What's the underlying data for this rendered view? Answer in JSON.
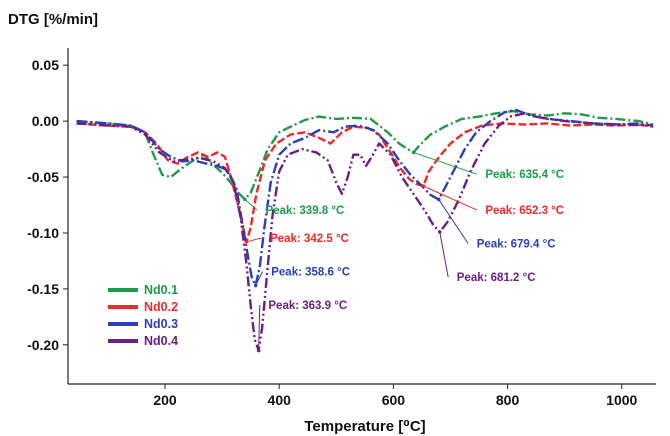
{
  "chart_data": {
    "type": "line",
    "ylabel": "DTG [%/min]",
    "xlabel": "Temperature [⁰C]",
    "xlim": [
      30,
      1060
    ],
    "ylim": [
      -0.235,
      0.06
    ],
    "xticks": [
      200,
      400,
      600,
      800,
      1000
    ],
    "xtick_labels": [
      "200",
      "400",
      "600",
      "800",
      "1000"
    ],
    "yticks": [
      0.05,
      0.0,
      -0.05,
      -0.1,
      -0.15,
      -0.2
    ],
    "ytick_labels": [
      "0.05",
      "0.00",
      "-0.05",
      "-0.10",
      "-0.15",
      "-0.20"
    ],
    "legend_position": "left-bottom",
    "series": [
      {
        "name": "Nd0.1",
        "color": "#1f9a4a",
        "dash": "10,3,2,3",
        "points": [
          [
            45,
            0
          ],
          [
            100,
            -0.002
          ],
          [
            140,
            -0.004
          ],
          [
            165,
            -0.01
          ],
          [
            180,
            -0.03
          ],
          [
            195,
            -0.048
          ],
          [
            210,
            -0.05
          ],
          [
            222,
            -0.045
          ],
          [
            235,
            -0.04
          ],
          [
            250,
            -0.035
          ],
          [
            268,
            -0.03
          ],
          [
            282,
            -0.038
          ],
          [
            300,
            -0.046
          ],
          [
            315,
            -0.055
          ],
          [
            330,
            -0.065
          ],
          [
            339.8,
            -0.07
          ],
          [
            350,
            -0.064
          ],
          [
            365,
            -0.045
          ],
          [
            380,
            -0.025
          ],
          [
            400,
            -0.01
          ],
          [
            420,
            -0.005
          ],
          [
            445,
            0.001
          ],
          [
            470,
            0.004
          ],
          [
            500,
            0.002
          ],
          [
            530,
            0.003
          ],
          [
            560,
            0.002
          ],
          [
            590,
            -0.01
          ],
          [
            610,
            -0.02
          ],
          [
            625,
            -0.025
          ],
          [
            635.4,
            -0.028
          ],
          [
            645,
            -0.022
          ],
          [
            665,
            -0.012
          ],
          [
            690,
            -0.005
          ],
          [
            720,
            0.002
          ],
          [
            750,
            0.004
          ],
          [
            780,
            0.007
          ],
          [
            810,
            0.009
          ],
          [
            840,
            0.006
          ],
          [
            870,
            0.005
          ],
          [
            900,
            0.007
          ],
          [
            930,
            0.006
          ],
          [
            960,
            0.003
          ],
          [
            990,
            0.002
          ],
          [
            1030,
            0.0
          ],
          [
            1055,
            -0.003
          ]
        ]
      },
      {
        "name": "Nd0.2",
        "color": "#ee2a2a",
        "dash": "8,3",
        "points": [
          [
            45,
            -0.002
          ],
          [
            100,
            -0.004
          ],
          [
            140,
            -0.005
          ],
          [
            165,
            -0.01
          ],
          [
            185,
            -0.02
          ],
          [
            205,
            -0.035
          ],
          [
            222,
            -0.038
          ],
          [
            240,
            -0.032
          ],
          [
            258,
            -0.028
          ],
          [
            275,
            -0.032
          ],
          [
            292,
            -0.028
          ],
          [
            305,
            -0.032
          ],
          [
            318,
            -0.055
          ],
          [
            330,
            -0.08
          ],
          [
            338,
            -0.098
          ],
          [
            342.5,
            -0.108
          ],
          [
            350,
            -0.095
          ],
          [
            360,
            -0.065
          ],
          [
            375,
            -0.035
          ],
          [
            395,
            -0.02
          ],
          [
            420,
            -0.012
          ],
          [
            445,
            -0.01
          ],
          [
            470,
            -0.015
          ],
          [
            490,
            -0.02
          ],
          [
            510,
            -0.01
          ],
          [
            530,
            -0.005
          ],
          [
            555,
            -0.006
          ],
          [
            575,
            -0.012
          ],
          [
            595,
            -0.028
          ],
          [
            612,
            -0.042
          ],
          [
            628,
            -0.052
          ],
          [
            640,
            -0.056
          ],
          [
            652.3,
            -0.058
          ],
          [
            662,
            -0.045
          ],
          [
            680,
            -0.032
          ],
          [
            700,
            -0.02
          ],
          [
            725,
            -0.01
          ],
          [
            755,
            -0.004
          ],
          [
            790,
            -0.002
          ],
          [
            830,
            -0.003
          ],
          [
            870,
            -0.002
          ],
          [
            910,
            -0.004
          ],
          [
            950,
            -0.003
          ],
          [
            990,
            -0.004
          ],
          [
            1030,
            -0.003
          ],
          [
            1055,
            -0.005
          ]
        ]
      },
      {
        "name": "Nd0.3",
        "color": "#2d3fb8",
        "dash": "11,3,2,3",
        "points": [
          [
            45,
            0
          ],
          [
            100,
            -0.002
          ],
          [
            140,
            -0.004
          ],
          [
            165,
            -0.01
          ],
          [
            190,
            -0.025
          ],
          [
            210,
            -0.032
          ],
          [
            230,
            -0.036
          ],
          [
            250,
            -0.035
          ],
          [
            272,
            -0.038
          ],
          [
            292,
            -0.04
          ],
          [
            310,
            -0.044
          ],
          [
            325,
            -0.06
          ],
          [
            335,
            -0.09
          ],
          [
            345,
            -0.12
          ],
          [
            352,
            -0.14
          ],
          [
            358.6,
            -0.147
          ],
          [
            366,
            -0.13
          ],
          [
            374,
            -0.095
          ],
          [
            385,
            -0.055
          ],
          [
            400,
            -0.03
          ],
          [
            420,
            -0.02
          ],
          [
            445,
            -0.015
          ],
          [
            470,
            -0.008
          ],
          [
            495,
            -0.01
          ],
          [
            515,
            -0.005
          ],
          [
            540,
            -0.004
          ],
          [
            565,
            -0.008
          ],
          [
            590,
            -0.02
          ],
          [
            610,
            -0.035
          ],
          [
            630,
            -0.048
          ],
          [
            650,
            -0.058
          ],
          [
            665,
            -0.066
          ],
          [
            679.4,
            -0.07
          ],
          [
            690,
            -0.06
          ],
          [
            705,
            -0.045
          ],
          [
            725,
            -0.025
          ],
          [
            745,
            -0.01
          ],
          [
            770,
            0.0
          ],
          [
            795,
            0.008
          ],
          [
            815,
            0.01
          ],
          [
            840,
            0.005
          ],
          [
            870,
            0.002
          ],
          [
            910,
            0.0
          ],
          [
            950,
            -0.002
          ],
          [
            990,
            -0.003
          ],
          [
            1030,
            -0.002
          ],
          [
            1055,
            -0.004
          ]
        ]
      },
      {
        "name": "Nd0.4",
        "color": "#6a1f85",
        "dash": "10,3,2,3,2,3",
        "points": [
          [
            45,
            -0.002
          ],
          [
            100,
            -0.004
          ],
          [
            140,
            -0.005
          ],
          [
            165,
            -0.012
          ],
          [
            190,
            -0.028
          ],
          [
            215,
            -0.036
          ],
          [
            240,
            -0.034
          ],
          [
            262,
            -0.033
          ],
          [
            285,
            -0.036
          ],
          [
            305,
            -0.042
          ],
          [
            320,
            -0.055
          ],
          [
            332,
            -0.085
          ],
          [
            342,
            -0.125
          ],
          [
            350,
            -0.165
          ],
          [
            357,
            -0.195
          ],
          [
            363.9,
            -0.205
          ],
          [
            370,
            -0.185
          ],
          [
            378,
            -0.14
          ],
          [
            388,
            -0.085
          ],
          [
            400,
            -0.045
          ],
          [
            415,
            -0.03
          ],
          [
            440,
            -0.025
          ],
          [
            465,
            -0.028
          ],
          [
            485,
            -0.035
          ],
          [
            500,
            -0.055
          ],
          [
            510,
            -0.065
          ],
          [
            520,
            -0.05
          ],
          [
            530,
            -0.03
          ],
          [
            542,
            -0.03
          ],
          [
            552,
            -0.04
          ],
          [
            562,
            -0.032
          ],
          [
            575,
            -0.02
          ],
          [
            595,
            -0.03
          ],
          [
            615,
            -0.05
          ],
          [
            635,
            -0.065
          ],
          [
            655,
            -0.08
          ],
          [
            670,
            -0.093
          ],
          [
            681.2,
            -0.099
          ],
          [
            695,
            -0.09
          ],
          [
            715,
            -0.07
          ],
          [
            735,
            -0.045
          ],
          [
            760,
            -0.02
          ],
          [
            785,
            -0.004
          ],
          [
            805,
            0.004
          ],
          [
            830,
            0.007
          ],
          [
            860,
            0.003
          ],
          [
            900,
            0.0
          ],
          [
            950,
            -0.002
          ],
          [
            1000,
            -0.003
          ],
          [
            1055,
            -0.004
          ]
        ]
      }
    ],
    "annotations": [
      {
        "text": "Peak: 339.8 °C",
        "color": "#1f9a4a",
        "x": 339.8,
        "y": -0.07,
        "label_x": 445,
        "label_y": -0.083
      },
      {
        "text": "Peak: 342.5 °C",
        "color": "#ee2a2a",
        "x": 342.5,
        "y": -0.108,
        "label_x": 453,
        "label_y": -0.108
      },
      {
        "text": "Peak: 358.6 °C",
        "color": "#2d3fb8",
        "x": 358.6,
        "y": -0.147,
        "label_x": 455,
        "label_y": -0.138
      },
      {
        "text": "Peak: 363.9 °C",
        "color": "#6a1f85",
        "x": 363.9,
        "y": -0.205,
        "label_x": 450,
        "label_y": -0.168
      },
      {
        "text": "Peak: 635.4 °C",
        "color": "#1f9a4a",
        "x": 635.4,
        "y": -0.028,
        "label_x": 830,
        "label_y": -0.051
      },
      {
        "text": "Peak: 652.3 °C",
        "color": "#ee2a2a",
        "x": 652.3,
        "y": -0.058,
        "label_x": 830,
        "label_y": -0.083
      },
      {
        "text": "Peak: 679.4 °C",
        "color": "#2d3fb8",
        "x": 679.4,
        "y": -0.07,
        "label_x": 815,
        "label_y": -0.113
      },
      {
        "text": "Peak: 681.2 °C",
        "color": "#6a1f85",
        "x": 681.2,
        "y": -0.099,
        "label_x": 780,
        "label_y": -0.143
      }
    ]
  }
}
